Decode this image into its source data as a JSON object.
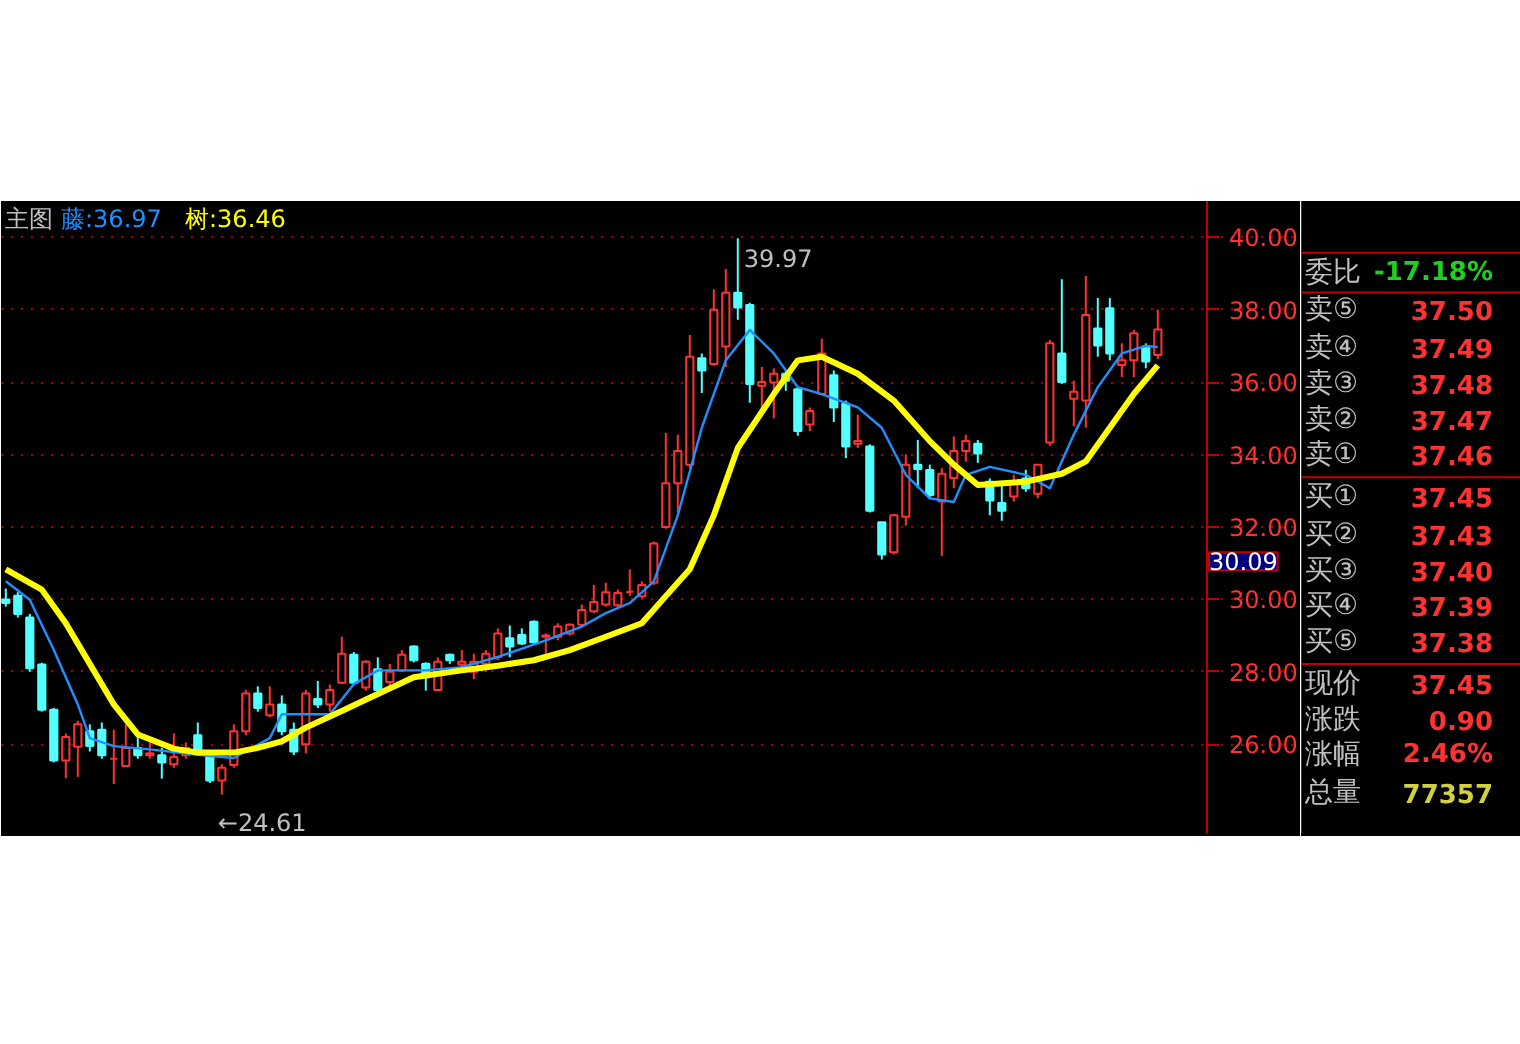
{
  "chart_data": {
    "type": "candlestick",
    "title": "主图",
    "legend": "top left",
    "grid": "y",
    "categories": [
      null,
      null,
      null,
      null,
      null,
      null,
      null,
      null,
      null,
      null,
      null,
      null,
      null,
      null,
      null,
      null,
      null,
      null,
      null,
      null,
      null,
      null,
      null,
      null,
      null,
      null,
      null,
      null,
      null,
      null,
      null,
      null,
      null,
      null,
      null,
      null,
      null,
      null,
      null,
      null,
      null,
      null,
      null,
      null,
      null,
      null,
      null,
      null,
      null,
      null,
      null,
      null,
      null,
      null,
      null,
      null,
      null,
      null,
      null,
      null,
      null,
      null,
      null,
      null,
      null,
      null,
      null,
      null,
      null,
      null,
      null,
      null,
      null,
      null,
      null,
      null,
      null,
      null,
      null,
      null,
      null,
      null,
      null,
      null,
      null,
      null,
      null,
      null,
      null,
      null,
      null,
      null,
      null,
      null,
      null,
      null,
      null
    ],
    "ohlc": [
      [
        30.0,
        30.3,
        29.8,
        29.9
      ],
      [
        30.1,
        30.2,
        29.5,
        29.6
      ],
      [
        29.5,
        29.6,
        28.0,
        28.1
      ],
      [
        28.2,
        28.25,
        26.9,
        26.95
      ],
      [
        26.95,
        27.0,
        25.5,
        25.55
      ],
      [
        25.55,
        26.3,
        25.06,
        26.2
      ],
      [
        25.93,
        26.65,
        25.1,
        26.55
      ],
      [
        26.36,
        26.55,
        25.8,
        25.95
      ],
      [
        26.4,
        26.6,
        25.6,
        25.7
      ],
      [
        25.6,
        26.4,
        24.9,
        25.6
      ],
      [
        25.4,
        26.55,
        25.4,
        25.9
      ],
      [
        25.9,
        26.3,
        25.6,
        25.7
      ],
      [
        25.7,
        26.05,
        25.6,
        25.75
      ],
      [
        25.7,
        25.9,
        25.05,
        25.5
      ],
      [
        25.45,
        26.3,
        25.35,
        25.65
      ],
      [
        25.7,
        26.05,
        25.6,
        25.9
      ],
      [
        26.25,
        26.6,
        25.7,
        25.8
      ],
      [
        25.65,
        25.7,
        24.93,
        25.0
      ],
      [
        25.0,
        25.45,
        24.61,
        25.35
      ],
      [
        25.43,
        26.55,
        25.35,
        26.36
      ],
      [
        26.36,
        27.5,
        26.25,
        27.4
      ],
      [
        27.4,
        27.6,
        26.9,
        27.0
      ],
      [
        26.8,
        27.6,
        26.75,
        27.1
      ],
      [
        27.1,
        27.35,
        26.25,
        26.36
      ],
      [
        26.4,
        26.6,
        25.7,
        25.8
      ],
      [
        26.0,
        27.5,
        25.75,
        27.4
      ],
      [
        27.25,
        27.75,
        27.0,
        27.1
      ],
      [
        27.1,
        27.65,
        26.9,
        27.5
      ],
      [
        27.7,
        28.97,
        27.66,
        28.5
      ],
      [
        28.47,
        28.55,
        27.63,
        27.7
      ],
      [
        27.57,
        28.32,
        27.48,
        28.28
      ],
      [
        28.07,
        28.4,
        27.4,
        27.5
      ],
      [
        27.72,
        28.22,
        27.48,
        28.0
      ],
      [
        28.04,
        28.6,
        28.0,
        28.47
      ],
      [
        28.7,
        28.73,
        28.26,
        28.32
      ],
      [
        28.22,
        28.26,
        27.48,
        27.85
      ],
      [
        27.5,
        28.4,
        27.48,
        28.28
      ],
      [
        28.47,
        28.5,
        28.22,
        28.32
      ],
      [
        28.2,
        28.6,
        28.0,
        28.28
      ],
      [
        28.0,
        28.5,
        27.8,
        28.28
      ],
      [
        28.22,
        28.6,
        28.0,
        28.5
      ],
      [
        28.4,
        29.2,
        28.32,
        29.06
      ],
      [
        28.93,
        29.28,
        28.4,
        28.7
      ],
      [
        29.02,
        29.2,
        28.74,
        28.78
      ],
      [
        29.38,
        29.42,
        28.78,
        28.82
      ],
      [
        28.97,
        29.06,
        28.5,
        29.0
      ],
      [
        28.97,
        29.34,
        28.87,
        29.25
      ],
      [
        29.06,
        29.34,
        29.0,
        29.3
      ],
      [
        29.3,
        29.86,
        29.25,
        29.71
      ],
      [
        29.67,
        30.4,
        29.62,
        29.93
      ],
      [
        29.86,
        30.46,
        29.8,
        30.2
      ],
      [
        29.84,
        30.27,
        29.75,
        30.18
      ],
      [
        30.2,
        30.83,
        30.1,
        30.22
      ],
      [
        30.09,
        30.5,
        30.03,
        30.4
      ],
      [
        30.46,
        31.6,
        30.4,
        31.54
      ],
      [
        32.0,
        34.6,
        31.95,
        33.21
      ],
      [
        33.21,
        34.55,
        32.41,
        34.1
      ],
      [
        33.72,
        37.3,
        33.62,
        36.7
      ],
      [
        36.66,
        36.79,
        35.7,
        36.32
      ],
      [
        36.5,
        38.56,
        36.45,
        38.0
      ],
      [
        36.98,
        39.12,
        36.42,
        38.47
      ],
      [
        38.47,
        39.97,
        37.72,
        38.06
      ],
      [
        38.13,
        38.19,
        35.43,
        35.95
      ],
      [
        35.9,
        36.42,
        35.2,
        36.0
      ],
      [
        35.99,
        36.38,
        35.0,
        36.23
      ],
      [
        36.23,
        36.32,
        35.76,
        36.04
      ],
      [
        35.8,
        35.86,
        34.52,
        34.65
      ],
      [
        34.83,
        35.3,
        34.65,
        35.2
      ],
      [
        35.67,
        37.2,
        35.63,
        36.79
      ],
      [
        36.19,
        36.32,
        34.9,
        35.3
      ],
      [
        35.4,
        35.49,
        33.9,
        34.22
      ],
      [
        34.3,
        35.1,
        34.18,
        34.37
      ],
      [
        34.22,
        34.28,
        32.4,
        32.45
      ],
      [
        32.13,
        32.13,
        31.1,
        31.24
      ],
      [
        31.3,
        32.36,
        31.24,
        32.32
      ],
      [
        32.28,
        34.0,
        32.04,
        33.72
      ],
      [
        33.72,
        34.4,
        33.07,
        33.6
      ],
      [
        33.57,
        33.72,
        32.79,
        32.88
      ],
      [
        32.7,
        33.62,
        31.2,
        33.47
      ],
      [
        33.35,
        34.5,
        33.07,
        34.1
      ],
      [
        34.1,
        34.55,
        33.8,
        34.37
      ],
      [
        34.3,
        34.4,
        33.77,
        34.03
      ],
      [
        33.25,
        33.34,
        32.32,
        32.73
      ],
      [
        32.66,
        33.2,
        32.17,
        32.45
      ],
      [
        32.84,
        33.44,
        32.7,
        33.25
      ],
      [
        33.34,
        33.58,
        32.97,
        33.07
      ],
      [
        32.92,
        33.72,
        32.79,
        33.72
      ],
      [
        34.33,
        37.16,
        34.24,
        37.07
      ],
      [
        36.79,
        38.84,
        35.95,
        36.0
      ],
      [
        35.54,
        36.04,
        34.78,
        35.73
      ],
      [
        35.49,
        38.93,
        34.74,
        37.85
      ],
      [
        37.48,
        38.32,
        36.7,
        37.01
      ],
      [
        38.04,
        38.32,
        36.6,
        36.79
      ],
      [
        36.47,
        37.07,
        36.14,
        36.6
      ],
      [
        36.6,
        37.44,
        36.14,
        37.35
      ],
      [
        36.98,
        37.07,
        36.38,
        36.57
      ],
      [
        36.75,
        38.0,
        36.64,
        37.45
      ]
    ],
    "series": [
      {
        "name": "藤:36.97",
        "type": "line",
        "color": "#1e90ff",
        "values": [
          30.5,
          null,
          29.99,
          null,
          28.6,
          null,
          27.1,
          26.17,
          null,
          25.95,
          null,
          null,
          25.86,
          null,
          null,
          null,
          25.71,
          null,
          null,
          25.62,
          null,
          null,
          26.17,
          26.83,
          null,
          null,
          null,
          26.83,
          null,
          27.66,
          null,
          28.04,
          null,
          null,
          null,
          28.04,
          null,
          null,
          28.13,
          null,
          null,
          28.41,
          null,
          null,
          null,
          28.87,
          null,
          null,
          29.25,
          null,
          29.62,
          null,
          29.9,
          null,
          30.5,
          null,
          32.32,
          null,
          34.74,
          null,
          36.6,
          null,
          37.44,
          null,
          36.79,
          null,
          35.86,
          null,
          35.67,
          null,
          null,
          35.3,
          null,
          34.74,
          null,
          33.44,
          null,
          32.79,
          null,
          32.69,
          33.44,
          null,
          33.66,
          null,
          null,
          33.44,
          null,
          33.07,
          null,
          34.55,
          null,
          35.86,
          null,
          36.79,
          null,
          37.0,
          36.97
        ]
      },
      {
        "name": "树:36.46",
        "type": "line",
        "color": "#ffff00",
        "values": [
          30.83,
          null,
          null,
          30.27,
          null,
          29.34,
          null,
          28.22,
          null,
          27.1,
          null,
          26.27,
          null,
          null,
          25.88,
          null,
          25.77,
          null,
          null,
          25.77,
          null,
          25.9,
          null,
          26.08,
          null,
          26.46,
          null,
          null,
          26.92,
          null,
          null,
          27.39,
          null,
          null,
          27.85,
          null,
          null,
          null,
          28.04,
          null,
          null,
          28.17,
          null,
          null,
          28.32,
          null,
          null,
          28.6,
          null,
          null,
          28.97,
          null,
          null,
          29.34,
          null,
          30.09,
          null,
          30.83,
          null,
          32.32,
          null,
          34.18,
          null,
          null,
          35.67,
          null,
          36.6,
          null,
          36.7,
          null,
          null,
          36.23,
          null,
          null,
          35.49,
          null,
          null,
          34.37,
          null,
          33.72,
          null,
          33.16,
          null,
          null,
          null,
          33.25,
          null,
          null,
          33.47,
          null,
          33.81,
          null,
          34.74,
          null,
          35.67,
          null,
          36.46
        ]
      }
    ],
    "ylim": [
      23.55,
      41.0
    ],
    "yticks": [
      {
        "value": 26,
        "label": "26.00"
      },
      {
        "value": 28,
        "label": "28.00"
      },
      {
        "value": 30,
        "label": "30.00"
      },
      {
        "value": 32,
        "label": "32.00"
      },
      {
        "value": 34,
        "label": "34.00"
      },
      {
        "value": 36,
        "label": "36.00"
      },
      {
        "value": 38,
        "label": "38.00"
      },
      {
        "value": 40,
        "label": "40.00"
      }
    ],
    "annotations": [
      "39.97",
      "←24.61",
      "30.09",
      "委比 -17.18%",
      "卖⑤ 37.50",
      "卖④ 37.49",
      "卖③ 37.48",
      "卖② 37.47",
      "卖① 37.46",
      "买① 37.45",
      "买② 37.43",
      "买③ 37.40",
      "买④ 37.39",
      "买⑤ 37.38",
      "现价 37.45",
      "涨跌 0.90",
      "涨幅 2.46%",
      "总量 77357"
    ]
  }
}
